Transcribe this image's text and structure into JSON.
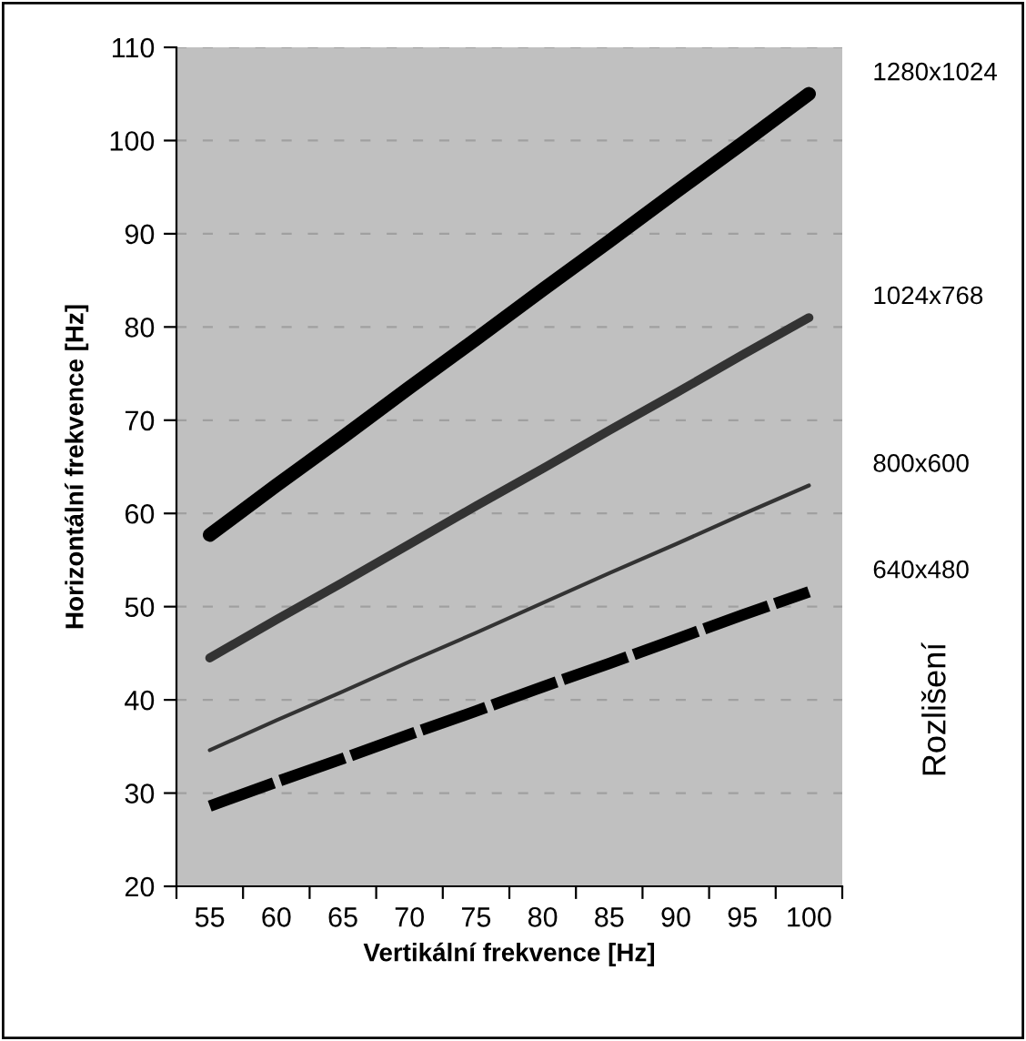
{
  "chart_data": {
    "type": "line",
    "xlabel": "Vertikální frekvence [Hz]",
    "ylabel": "Horizontální frekvence [Hz]",
    "legend_title": "Rozlišení",
    "legend": "right",
    "categories": [
      "55",
      "60",
      "65",
      "70",
      "75",
      "80",
      "85",
      "90",
      "95",
      "100"
    ],
    "ylim": [
      20,
      110
    ],
    "yticks": [
      20,
      30,
      40,
      50,
      60,
      70,
      80,
      90,
      100,
      110
    ],
    "grid": "y",
    "marker": "none",
    "series": [
      {
        "name": "1280x1024",
        "color": "#000000",
        "line_style": "solid",
        "values": [
          57.7,
          63,
          68.2,
          73.5,
          78.7,
          84,
          89.2,
          94.5,
          99.7,
          105
        ]
      },
      {
        "name": "1024x768",
        "color": "#333333",
        "line_style": "solid",
        "values": [
          44.5,
          48.6,
          52.6,
          56.7,
          60.8,
          64.8,
          68.9,
          72.9,
          77,
          81
        ]
      },
      {
        "name": "800x600",
        "color": "#333333",
        "line_style": "solid",
        "values": [
          34.6,
          37.8,
          40.9,
          44.1,
          47.2,
          50.4,
          53.6,
          56.7,
          59.9,
          63
        ]
      },
      {
        "name": "640x480",
        "color": "#000000",
        "line_style": "dashed",
        "values": [
          28.6,
          31.2,
          33.7,
          36.3,
          38.8,
          41.4,
          43.9,
          46.5,
          49.1,
          51.6
        ]
      }
    ]
  }
}
